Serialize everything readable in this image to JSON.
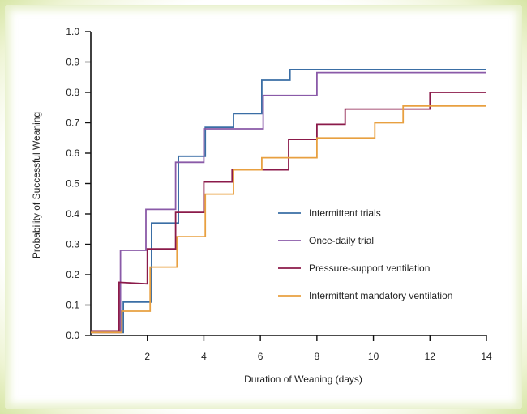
{
  "chart_data": {
    "type": "line",
    "step": true,
    "title": "",
    "xlabel": "Duration of Weaning (days)",
    "ylabel": "Probability of Successful Weaning",
    "xlim": [
      0,
      14
    ],
    "ylim": [
      0,
      1.0
    ],
    "x_ticks": [
      2,
      4,
      6,
      8,
      10,
      12,
      14
    ],
    "x_tick_labels": [
      "2",
      "4",
      "6",
      "8",
      "10",
      "12",
      "14"
    ],
    "y_ticks": [
      0,
      0.1,
      0.2,
      0.3,
      0.4,
      0.5,
      0.6,
      0.7,
      0.8,
      0.9,
      1.0
    ],
    "y_tick_labels": [
      "0.0",
      "0.1",
      "0.2",
      "0.3",
      "0.4",
      "0.5",
      "0.6",
      "0.7",
      "0.8",
      "0.9",
      "1.0"
    ],
    "grid": false,
    "legend_position": "center-right",
    "series": [
      {
        "name": "Intermittent trials",
        "color": "#3a6ea5",
        "points": [
          [
            0,
            0.01
          ],
          [
            1.15,
            0.01
          ],
          [
            1.15,
            0.11
          ],
          [
            2.15,
            0.11
          ],
          [
            2.15,
            0.37
          ],
          [
            3.1,
            0.37
          ],
          [
            3.1,
            0.59
          ],
          [
            4.05,
            0.59
          ],
          [
            4.05,
            0.685
          ],
          [
            5.05,
            0.685
          ],
          [
            5.05,
            0.73
          ],
          [
            6.05,
            0.73
          ],
          [
            6.05,
            0.84
          ],
          [
            7.05,
            0.84
          ],
          [
            7.05,
            0.875
          ],
          [
            14,
            0.875
          ]
        ]
      },
      {
        "name": "Once-daily trial",
        "color": "#8a5aa8",
        "points": [
          [
            0,
            0.01
          ],
          [
            1.05,
            0.01
          ],
          [
            1.05,
            0.28
          ],
          [
            1.95,
            0.28
          ],
          [
            1.95,
            0.415
          ],
          [
            3.0,
            0.415
          ],
          [
            3.0,
            0.57
          ],
          [
            4.0,
            0.57
          ],
          [
            4.0,
            0.68
          ],
          [
            6.1,
            0.68
          ],
          [
            6.1,
            0.79
          ],
          [
            8.0,
            0.79
          ],
          [
            8.0,
            0.865
          ],
          [
            14,
            0.865
          ]
        ]
      },
      {
        "name": "Pressure-support ventilation",
        "color": "#8b1a4a",
        "points": [
          [
            0,
            0.015
          ],
          [
            1.0,
            0.015
          ],
          [
            1.0,
            0.175
          ],
          [
            2.0,
            0.17
          ],
          [
            2.0,
            0.285
          ],
          [
            3.0,
            0.285
          ],
          [
            3.0,
            0.405
          ],
          [
            4.0,
            0.405
          ],
          [
            4.0,
            0.505
          ],
          [
            5.0,
            0.505
          ],
          [
            5.0,
            0.545
          ],
          [
            7.0,
            0.545
          ],
          [
            7.0,
            0.645
          ],
          [
            8.0,
            0.645
          ],
          [
            8.0,
            0.695
          ],
          [
            9.0,
            0.695
          ],
          [
            9.0,
            0.745
          ],
          [
            12.0,
            0.745
          ],
          [
            12.0,
            0.8
          ],
          [
            14,
            0.8
          ]
        ]
      },
      {
        "name": "Intermittent mandatory ventilation",
        "color": "#e8a040",
        "points": [
          [
            0,
            0.01
          ],
          [
            1.1,
            0.01
          ],
          [
            1.1,
            0.08
          ],
          [
            2.1,
            0.08
          ],
          [
            2.1,
            0.225
          ],
          [
            3.05,
            0.225
          ],
          [
            3.05,
            0.325
          ],
          [
            4.05,
            0.325
          ],
          [
            4.05,
            0.465
          ],
          [
            5.05,
            0.465
          ],
          [
            5.05,
            0.545
          ],
          [
            6.05,
            0.545
          ],
          [
            6.05,
            0.585
          ],
          [
            8.0,
            0.585
          ],
          [
            8.0,
            0.65
          ],
          [
            10.05,
            0.65
          ],
          [
            10.05,
            0.7
          ],
          [
            11.05,
            0.7
          ],
          [
            11.05,
            0.755
          ],
          [
            14,
            0.755
          ]
        ]
      }
    ]
  }
}
